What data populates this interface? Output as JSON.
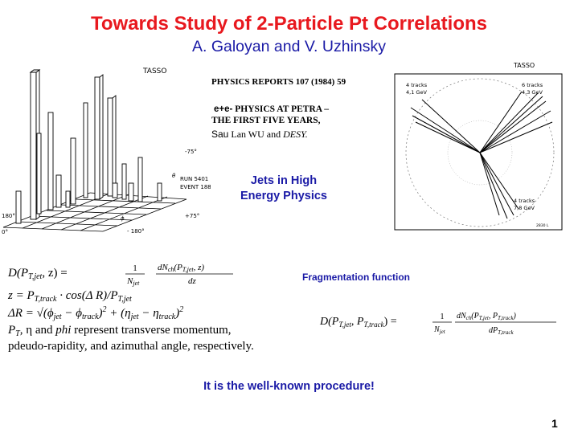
{
  "slide": {
    "title": "Towards Study of 2-Particle Pt Correlations",
    "authors": "A. Galoyan and V. Uzhinsky",
    "page_number": "1"
  },
  "lego_plot": {
    "label": "TASSO",
    "axis_theta": "θ",
    "axis_phi": "ϕ",
    "run": "RUN 5401",
    "event": "EVENT 1883",
    "tick_m75": "-75°",
    "tick_p75": "+75°",
    "tick_180": "180°",
    "tick_m180": "- 180°",
    "tick_0": "0°"
  },
  "reference": {
    "journal": "PHYSICS REPORTS  107 (1984) 59",
    "title_prefix": "e+e-",
    "title_line1_rest": " PHYSICS AT PETRA –",
    "title_line2": "THE FIRST  FIVE YEARS,",
    "author_sans": "Sau",
    "author_serif": " Lan WU and ",
    "institution": "DESY."
  },
  "jets_label": {
    "line1": "Jets in High",
    "line2": "Energy Physics"
  },
  "event_display": {
    "label": "TASSO",
    "jet_a_tracks": "4 tracks",
    "jet_a_energy": "4,1 GeV",
    "jet_b_tracks": "6 tracks",
    "jet_b_energy": "4,3 GeV",
    "jet_c_tracks": "4 tracks",
    "jet_c_energy": "7,8 GeV",
    "figure_id": "2830 L"
  },
  "fragmentation_label": "Fragmentation function",
  "formulas": {
    "eq1_lhs": "D(P",
    "eq1_lhs_sub": "T,jet",
    "eq1_lhs_end": ", z)  =",
    "eq1_frac_num": "1",
    "eq1_frac_den": "N",
    "eq1_frac_den_sub": "jet",
    "eq1_deriv_num": "dN",
    "eq1_deriv_num_sub": "ch",
    "eq1_deriv_num_end": "(P",
    "eq1_deriv_num_sub2": "T,jet",
    "eq1_deriv_num_end2": ", z)",
    "eq1_deriv_den": "dz",
    "eq2_lhs": "z  =  P",
    "eq2_sub1": "T,track",
    "eq2_mid": "  ·  cos(Δ R)/P",
    "eq2_sub2": "T,jet",
    "eq3_lhs": "ΔR  =  √(ϕ",
    "eq3_sub1": "jet",
    "eq3_m1": " − ϕ",
    "eq3_sub2": "track",
    "eq3_m2": ")",
    "eq3_sup1": "2",
    "eq3_m3": " + (η",
    "eq3_sub3": "jet",
    "eq3_m4": " − η",
    "eq3_sub4": "track",
    "eq3_m5": ")",
    "eq3_sup2": "2",
    "def_line1_a": "P",
    "def_line1_sub": "T",
    "def_line1_b": ", η and ",
    "def_line1_c": "phi",
    "def_line1_d": " represent transverse momentum,",
    "def_line2": "pdeudo-rapidity, and azimuthal angle, respectively.",
    "eq4_lhs": "D(P",
    "eq4_sub1": "T,jet",
    "eq4_m1": ", P",
    "eq4_sub2": "T,track",
    "eq4_m2": ")  =",
    "eq4_frac_num": "1",
    "eq4_frac_den": "N",
    "eq4_frac_den_sub": "jet",
    "eq4_deriv_num": "dN",
    "eq4_deriv_num_sub": "ch",
    "eq4_deriv_num_m": "(P",
    "eq4_deriv_num_sub2": "T,jet",
    "eq4_deriv_num_m2": ", P",
    "eq4_deriv_num_sub3": "T,track",
    "eq4_deriv_num_m3": ")",
    "eq4_deriv_den": "dP",
    "eq4_deriv_den_sub": "T,track"
  },
  "procedure_text": "It is the well-known procedure!",
  "colors": {
    "title": "#e8191f",
    "accent_blue": "#1a1aa6"
  }
}
